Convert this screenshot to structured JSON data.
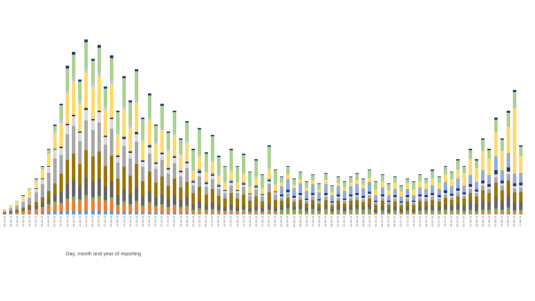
{
  "chart_data": {
    "type": "bar",
    "stacked": true,
    "title": "",
    "xlabel": "Day, month and year of reporting",
    "ylabel": "",
    "grid": false,
    "y_axis_visible": false,
    "legend_visible": false,
    "value_unit": "estimated pixel heights (no y-axis scale shown in source image)",
    "series_keys": [
      "blue",
      "orange",
      "green",
      "dark_gray",
      "olive",
      "gray",
      "silver",
      "navy",
      "light_blue",
      "yellow",
      "periwinkle",
      "light_green",
      "navy_cap"
    ],
    "series_colors": {
      "blue": "#5B9BD5",
      "orange": "#ED7D31",
      "green": "#70AD47",
      "dark_gray": "#636363",
      "olive": "#997300",
      "gray": "#A6A6A6",
      "silver": "#D9D9D9",
      "navy": "#1F3864",
      "light_blue": "#8FAADC",
      "yellow": "#FFD966",
      "periwinkle": "#B4C7E7",
      "light_green": "#A9D18E",
      "navy_cap": "#1F3864"
    },
    "x_tick_labels": [
      "06-03-23",
      "08-03-23",
      "10-03-23",
      "12-03-23",
      "14-03-23",
      "16-03-23",
      "18-03-23",
      "20-03-23",
      "22-03-23",
      "24-03-23",
      "26-03-23",
      "28-03-23",
      "30-03-23",
      "01-04-23",
      "03-04-23",
      "05-04-23",
      "07-04-23",
      "09-04-23",
      "11-04-23",
      "13-04-23",
      "15-04-23",
      "17-04-23",
      "19-04-23",
      "21-04-23",
      "23-04-23",
      "25-04-23",
      "27-04-23",
      "29-04-23",
      "01-05-23",
      "03-05-23",
      "05-05-23",
      "07-05-23",
      "09-05-23",
      "11-05-23",
      "13-05-23",
      "15-05-23",
      "17-05-23",
      "19-05-23",
      "21-05-23",
      "23-05-23",
      "25-05-23",
      "27-05-23",
      "29-05-23",
      "31-05-23",
      "02-06-23",
      "04-06-23",
      "06-06-23",
      "08-06-23",
      "10-06-23",
      "12-06-23",
      "14-06-23",
      "16-06-23",
      "18-06-23",
      "20-06-23",
      "22-06-23",
      "24-06-23",
      "26-06-23",
      "28-06-23",
      "30-06-23",
      "02-07-23",
      "04-07-23",
      "06-07-23",
      "08-07-23",
      "10-07-23",
      "12-07-23",
      "14-07-23",
      "16-07-23",
      "18-07-23",
      "20-07-23",
      "22-07-23",
      "24-07-23",
      "26-07-23",
      "28-07-23",
      "30-07-23",
      "01-08-23",
      "03-08-23",
      "05-08-23",
      "07-08-23",
      "09-08-23",
      "11-08-23",
      "13-08-23",
      "15-08-23",
      "17-08-23"
    ],
    "bars": [
      [
        0,
        1,
        0,
        1,
        1,
        2,
        1,
        0,
        0,
        2,
        0,
        0,
        0
      ],
      [
        1,
        1,
        0,
        1,
        2,
        4,
        1,
        0,
        0,
        2,
        0,
        1,
        0
      ],
      [
        1,
        2,
        0,
        2,
        2,
        6,
        2,
        0,
        0,
        4,
        0,
        1,
        0
      ],
      [
        1,
        3,
        1,
        2,
        3,
        8,
        3,
        0,
        0,
        5,
        0,
        1,
        1
      ],
      [
        2,
        4,
        1,
        3,
        4,
        10,
        4,
        0,
        0,
        7,
        1,
        2,
        0
      ],
      [
        2,
        5,
        1,
        4,
        6,
        14,
        5,
        1,
        0,
        10,
        1,
        2,
        1
      ],
      [
        3,
        7,
        1,
        6,
        8,
        19,
        7,
        1,
        0,
        13,
        1,
        3,
        1
      ],
      [
        4,
        9,
        2,
        8,
        11,
        26,
        9,
        1,
        0,
        17,
        2,
        5,
        1
      ],
      [
        5,
        12,
        2,
        10,
        16,
        36,
        13,
        1,
        0,
        23,
        3,
        7,
        2
      ],
      [
        4,
        11,
        2,
        16,
        26,
        27,
        10,
        2,
        0,
        34,
        4,
        22,
        2
      ],
      [
        5,
        15,
        3,
        22,
        34,
        37,
        13,
        2,
        0,
        45,
        5,
        30,
        4
      ],
      [
        6,
        16,
        4,
        24,
        38,
        40,
        14,
        2,
        0,
        49,
        6,
        32,
        4
      ],
      [
        5,
        14,
        3,
        20,
        31,
        33,
        12,
        2,
        0,
        41,
        5,
        26,
        3
      ],
      [
        6,
        18,
        4,
        25,
        40,
        43,
        15,
        3,
        0,
        53,
        6,
        36,
        4
      ],
      [
        6,
        16,
        3,
        23,
        36,
        38,
        14,
        2,
        0,
        47,
        6,
        31,
        3
      ],
      [
        6,
        17,
        4,
        25,
        39,
        42,
        15,
        2,
        0,
        51,
        6,
        34,
        4
      ],
      [
        5,
        13,
        3,
        19,
        30,
        31,
        11,
        2,
        0,
        39,
        5,
        24,
        3
      ],
      [
        6,
        16,
        3,
        23,
        37,
        39,
        14,
        2,
        0,
        48,
        6,
        32,
        4
      ],
      [
        3,
        9,
        2,
        14,
        24,
        23,
        8,
        2,
        1,
        30,
        3,
        29,
        2
      ],
      [
        4,
        12,
        3,
        18,
        32,
        30,
        10,
        3,
        1,
        40,
        4,
        40,
        3
      ],
      [
        3,
        10,
        2,
        15,
        26,
        25,
        8,
        2,
        1,
        33,
        3,
        34,
        3
      ],
      [
        4,
        13,
        3,
        19,
        34,
        32,
        11,
        3,
        1,
        42,
        4,
        41,
        3
      ],
      [
        3,
        8,
        2,
        13,
        22,
        21,
        7,
        2,
        1,
        28,
        3,
        28,
        2
      ],
      [
        4,
        11,
        3,
        16,
        28,
        26,
        9,
        3,
        1,
        35,
        4,
        32,
        3
      ],
      [
        3,
        8,
        2,
        12,
        21,
        20,
        7,
        2,
        1,
        26,
        3,
        23,
        2
      ],
      [
        3,
        10,
        2,
        14,
        26,
        24,
        8,
        2,
        1,
        32,
        3,
        32,
        3
      ],
      [
        2,
        7,
        2,
        11,
        19,
        18,
        6,
        2,
        1,
        24,
        2,
        24,
        2
      ],
      [
        3,
        9,
        2,
        14,
        24,
        22,
        8,
        2,
        1,
        30,
        3,
        30,
        2
      ],
      [
        2,
        7,
        2,
        10,
        18,
        16,
        6,
        2,
        1,
        22,
        2,
        20,
        2
      ],
      [
        3,
        8,
        2,
        12,
        22,
        20,
        7,
        2,
        1,
        27,
        3,
        26,
        2
      ],
      [
        1,
        4,
        2,
        8,
        16,
        11,
        4,
        2,
        2,
        13,
        1,
        29,
        2
      ],
      [
        1,
        5,
        3,
        10,
        21,
        15,
        5,
        3,
        3,
        18,
        2,
        37,
        2
      ],
      [
        1,
        4,
        2,
        7,
        15,
        11,
        4,
        2,
        2,
        13,
        1,
        26,
        2
      ],
      [
        1,
        5,
        2,
        9,
        20,
        14,
        5,
        2,
        2,
        16,
        2,
        35,
        2
      ],
      [
        1,
        3,
        2,
        7,
        14,
        10,
        3,
        2,
        2,
        12,
        1,
        26,
        2
      ],
      [
        1,
        3,
        1,
        6,
        12,
        8,
        3,
        1,
        1,
        10,
        1,
        22,
        1
      ],
      [
        1,
        4,
        2,
        8,
        16,
        11,
        4,
        2,
        2,
        13,
        1,
        29,
        2
      ],
      [
        1,
        3,
        1,
        6,
        12,
        8,
        3,
        1,
        1,
        10,
        1,
        22,
        1
      ],
      [
        1,
        4,
        2,
        7,
        15,
        11,
        3,
        2,
        2,
        12,
        1,
        26,
        2
      ],
      [
        1,
        2,
        1,
        5,
        11,
        7,
        2,
        1,
        1,
        9,
        1,
        20,
        1
      ],
      [
        1,
        3,
        2,
        6,
        14,
        10,
        3,
        2,
        2,
        11,
        1,
        23,
        2
      ],
      [
        1,
        2,
        1,
        5,
        10,
        7,
        2,
        1,
        1,
        8,
        1,
        18,
        1
      ],
      [
        1,
        4,
        2,
        8,
        17,
        12,
        4,
        2,
        2,
        14,
        2,
        30,
        2
      ],
      [
        1,
        3,
        1,
        5,
        11,
        8,
        3,
        1,
        1,
        9,
        1,
        20,
        1
      ],
      [
        1,
        2,
        4,
        6,
        7,
        4,
        2,
        3,
        12,
        5,
        0,
        8,
        1
      ],
      [
        1,
        2,
        6,
        7,
        8,
        6,
        2,
        4,
        15,
        7,
        0,
        11,
        1
      ],
      [
        1,
        2,
        4,
        5,
        6,
        4,
        2,
        3,
        11,
        5,
        0,
        8,
        1
      ],
      [
        1,
        2,
        5,
        6,
        7,
        5,
        2,
        3,
        14,
        6,
        0,
        10,
        1
      ],
      [
        0,
        1,
        4,
        5,
        6,
        4,
        1,
        2,
        11,
        5,
        0,
        8,
        1
      ],
      [
        1,
        2,
        5,
        6,
        7,
        5,
        2,
        3,
        13,
        5,
        0,
        8,
        1
      ],
      [
        0,
        1,
        4,
        5,
        5,
        4,
        1,
        2,
        10,
        4,
        0,
        8,
        1
      ],
      [
        1,
        2,
        5,
        6,
        7,
        5,
        2,
        3,
        13,
        6,
        0,
        9,
        1
      ],
      [
        0,
        1,
        3,
        4,
        5,
        3,
        1,
        2,
        9,
        4,
        0,
        9,
        1
      ],
      [
        1,
        2,
        4,
        6,
        7,
        4,
        2,
        3,
        12,
        5,
        0,
        8,
        1
      ],
      [
        0,
        1,
        4,
        5,
        6,
        4,
        1,
        2,
        11,
        5,
        0,
        8,
        1
      ],
      [
        1,
        2,
        4,
        6,
        7,
        4,
        2,
        3,
        12,
        5,
        0,
        8,
        1
      ],
      [
        1,
        2,
        5,
        6,
        7,
        5,
        2,
        3,
        13,
        6,
        0,
        9,
        1
      ],
      [
        1,
        2,
        4,
        5,
        6,
        4,
        2,
        3,
        11,
        5,
        0,
        8,
        1
      ],
      [
        1,
        2,
        5,
        7,
        8,
        5,
        2,
        3,
        14,
        6,
        0,
        11,
        1
      ],
      [
        0,
        1,
        2,
        5,
        6,
        3,
        1,
        2,
        8,
        8,
        0,
        11,
        1
      ],
      [
        1,
        2,
        3,
        6,
        8,
        4,
        2,
        3,
        10,
        9,
        0,
        9,
        1
      ],
      [
        0,
        1,
        2,
        5,
        6,
        3,
        1,
        2,
        8,
        7,
        0,
        9,
        1
      ],
      [
        1,
        2,
        3,
        6,
        7,
        4,
        2,
        3,
        9,
        9,
        0,
        8,
        1
      ],
      [
        0,
        1,
        2,
        5,
        5,
        3,
        1,
        2,
        7,
        7,
        0,
        8,
        1
      ],
      [
        1,
        2,
        3,
        6,
        7,
        4,
        2,
        3,
        9,
        8,
        0,
        6,
        1
      ],
      [
        0,
        1,
        2,
        5,
        6,
        3,
        1,
        2,
        8,
        8,
        0,
        11,
        1
      ],
      [
        1,
        2,
        3,
        6,
        8,
        4,
        2,
        3,
        10,
        9,
        0,
        9,
        1
      ],
      [
        1,
        2,
        3,
        6,
        7,
        4,
        2,
        3,
        9,
        8,
        0,
        6,
        1
      ],
      [
        1,
        2,
        3,
        7,
        8,
        5,
        2,
        3,
        11,
        10,
        0,
        11,
        2
      ],
      [
        1,
        2,
        3,
        6,
        7,
        4,
        2,
        3,
        9,
        9,
        0,
        8,
        1
      ],
      [
        1,
        2,
        4,
        8,
        9,
        5,
        2,
        4,
        12,
        11,
        0,
        11,
        1
      ],
      [
        1,
        2,
        3,
        7,
        8,
        4,
        2,
        3,
        11,
        10,
        0,
        10,
        1
      ],
      [
        1,
        2,
        4,
        9,
        10,
        6,
        2,
        4,
        14,
        13,
        0,
        13,
        2
      ],
      [
        1,
        2,
        2,
        8,
        10,
        4,
        2,
        3,
        10,
        18,
        0,
        9,
        1
      ],
      [
        1,
        3,
        3,
        11,
        13,
        6,
        3,
        4,
        13,
        24,
        0,
        12,
        2
      ],
      [
        1,
        2,
        2,
        10,
        11,
        5,
        2,
        3,
        11,
        20,
        0,
        11,
        2
      ],
      [
        1,
        3,
        3,
        13,
        15,
        7,
        3,
        4,
        15,
        28,
        0,
        16,
        2
      ],
      [
        1,
        3,
        3,
        11,
        13,
        6,
        3,
        4,
        13,
        24,
        0,
        12,
        2
      ],
      [
        1,
        4,
        4,
        17,
        20,
        8,
        4,
        6,
        20,
        35,
        0,
        18,
        3
      ],
      [
        1,
        3,
        3,
        13,
        15,
        7,
        3,
        4,
        15,
        28,
        0,
        16,
        2
      ],
      [
        2,
        4,
        4,
        18,
        21,
        9,
        4,
        6,
        21,
        38,
        0,
        20,
        3
      ],
      [
        1,
        3,
        2,
        12,
        14,
        6,
        3,
        4,
        14,
        95,
        0,
        23,
        3
      ],
      [
        1,
        3,
        3,
        12,
        14,
        6,
        3,
        4,
        14,
        25,
        0,
        13,
        2
      ]
    ]
  }
}
